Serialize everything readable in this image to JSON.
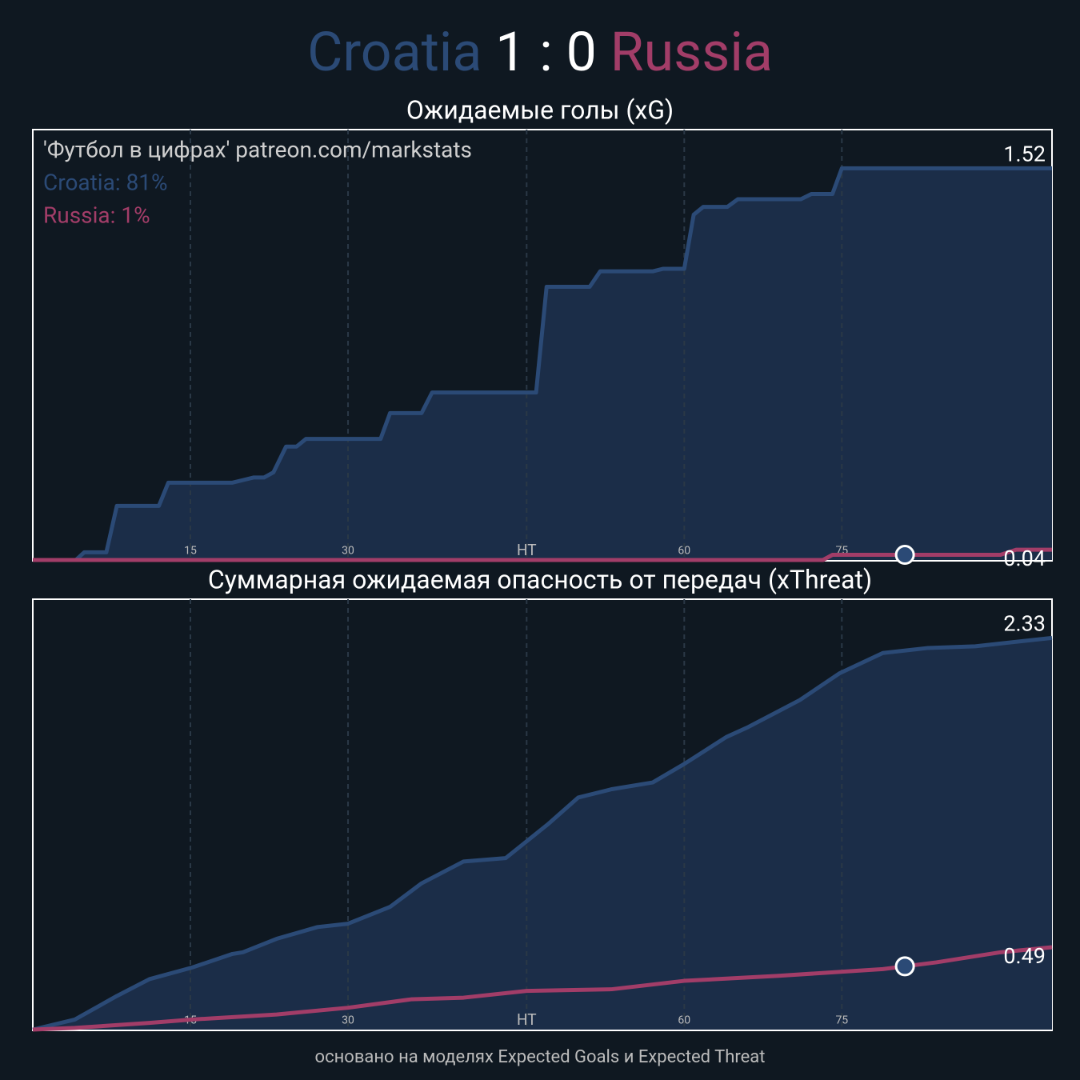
{
  "header": {
    "home": {
      "name": "Croatia",
      "color": "#2b4a76"
    },
    "score": "1 : 0",
    "away": {
      "name": "Russia",
      "color": "#a23d68"
    }
  },
  "chart_data": [
    {
      "type": "line",
      "title": "Ожидаемые голы (xG)",
      "annotations": [
        {
          "text": "'Футбол в цифрах' patreon.com/markstats",
          "color": "#cfcfcf"
        },
        {
          "text": "Croatia: 81%",
          "color": "#2b4a76"
        },
        {
          "text": "Russia: 1%",
          "color": "#a23d68"
        }
      ],
      "xlim": [
        0,
        97
      ],
      "ylim": [
        0,
        1.67
      ],
      "xticks": [
        15,
        30,
        {
          "value": 47,
          "label": "HT"
        },
        {
          "value": 62,
          "label": "60"
        },
        {
          "value": 77,
          "label": "75"
        }
      ],
      "grid": true,
      "fill_color": "#1b2d48",
      "series": [
        {
          "color": "#2b4a76",
          "x": [
            0,
            4.1,
            4.9,
            7.0,
            8.0,
            12.0,
            12.9,
            19.0,
            20.0,
            21.0,
            22.0,
            22.9,
            24.1,
            25.1,
            26.0,
            33.1,
            34.0,
            37.0,
            38.0,
            47.9,
            48.9,
            53.0,
            54.0,
            59.0,
            60.0,
            62.0,
            62.9,
            63.8,
            66.1,
            67.1,
            73.1,
            74.1,
            76.1,
            77.0,
            97
          ],
          "values": [
            0,
            0,
            0.03,
            0.03,
            0.21,
            0.21,
            0.3,
            0.3,
            0.31,
            0.32,
            0.32,
            0.34,
            0.44,
            0.44,
            0.47,
            0.47,
            0.57,
            0.57,
            0.65,
            0.65,
            1.06,
            1.06,
            1.12,
            1.12,
            1.13,
            1.13,
            1.34,
            1.37,
            1.37,
            1.4,
            1.4,
            1.42,
            1.42,
            1.52,
            1.52
          ]
        },
        {
          "color": "#a23d68",
          "x": [
            0,
            75.2,
            76.1,
            92.1,
            93.6,
            97
          ],
          "values": [
            0,
            0,
            0.02,
            0.02,
            0.04,
            0.04
          ]
        }
      ],
      "marker": {
        "x": 83,
        "series": 1,
        "color": "#2b4a76"
      }
    },
    {
      "type": "line",
      "title": "Суммарная ожидаемая опасность от передач (xThreat)",
      "xlim": [
        0,
        97
      ],
      "ylim": [
        0,
        2.56
      ],
      "xticks": [
        15,
        30,
        {
          "value": 47,
          "label": "HT"
        },
        {
          "value": 62,
          "label": "60"
        },
        {
          "value": 77,
          "label": "75"
        }
      ],
      "grid": true,
      "fill_color": "#1b2d48",
      "series": [
        {
          "color": "#2b4a76",
          "x": [
            0,
            4.0,
            8.0,
            11.1,
            15.2,
            19.0,
            20.0,
            23.2,
            27.1,
            30.0,
            34.0,
            37.0,
            41.0,
            45.0,
            49.0,
            51.9,
            55.1,
            59.0,
            62.0,
            66.0,
            68.1,
            73.0,
            76.8,
            80.9,
            85.2,
            89.7,
            97
          ],
          "values": [
            0,
            0.06,
            0.2,
            0.3,
            0.37,
            0.45,
            0.46,
            0.54,
            0.61,
            0.63,
            0.73,
            0.87,
            1.0,
            1.02,
            1.22,
            1.38,
            1.43,
            1.47,
            1.58,
            1.74,
            1.8,
            1.96,
            2.12,
            2.24,
            2.27,
            2.28,
            2.33
          ]
        },
        {
          "color": "#a23d68",
          "x": [
            0,
            4,
            11.1,
            15.2,
            23.2,
            30,
            36,
            41,
            47,
            55.1,
            62,
            71,
            80.9,
            86,
            92.1,
            97
          ],
          "values": [
            0,
            0.01,
            0.04,
            0.06,
            0.09,
            0.13,
            0.18,
            0.19,
            0.23,
            0.24,
            0.29,
            0.32,
            0.36,
            0.4,
            0.46,
            0.49
          ]
        }
      ],
      "marker": {
        "x": 83,
        "series": 1,
        "color": "#2b4a76"
      }
    }
  ],
  "footer": "основано на моделях Expected Goals и Expected Threat"
}
